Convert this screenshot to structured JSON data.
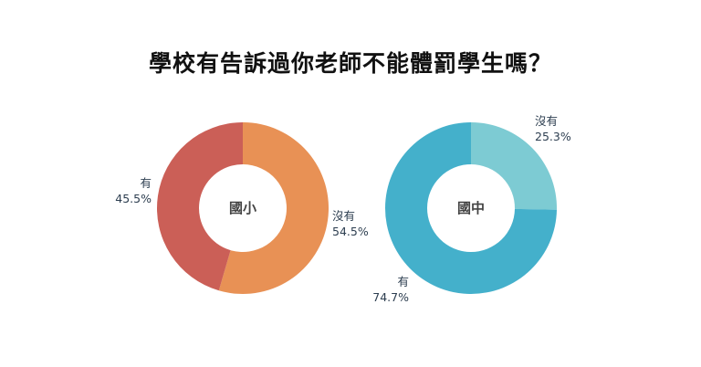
{
  "title": "學校有告訴過你老師不能體罰學生嗎？",
  "chart_data": [
    {
      "type": "pie",
      "center_label": "國小",
      "slices": [
        {
          "label": "沒有",
          "value": 54.5,
          "percent_text": "54.5%",
          "color": "#E89155"
        },
        {
          "label": "有",
          "value": 45.5,
          "percent_text": "45.5%",
          "color": "#CB5F57"
        }
      ]
    },
    {
      "type": "pie",
      "center_label": "國中",
      "slices": [
        {
          "label": "沒有",
          "value": 25.3,
          "percent_text": "25.3%",
          "color": "#7DCBD3"
        },
        {
          "label": "有",
          "value": 74.7,
          "percent_text": "74.7%",
          "color": "#44B0CB"
        }
      ]
    }
  ]
}
